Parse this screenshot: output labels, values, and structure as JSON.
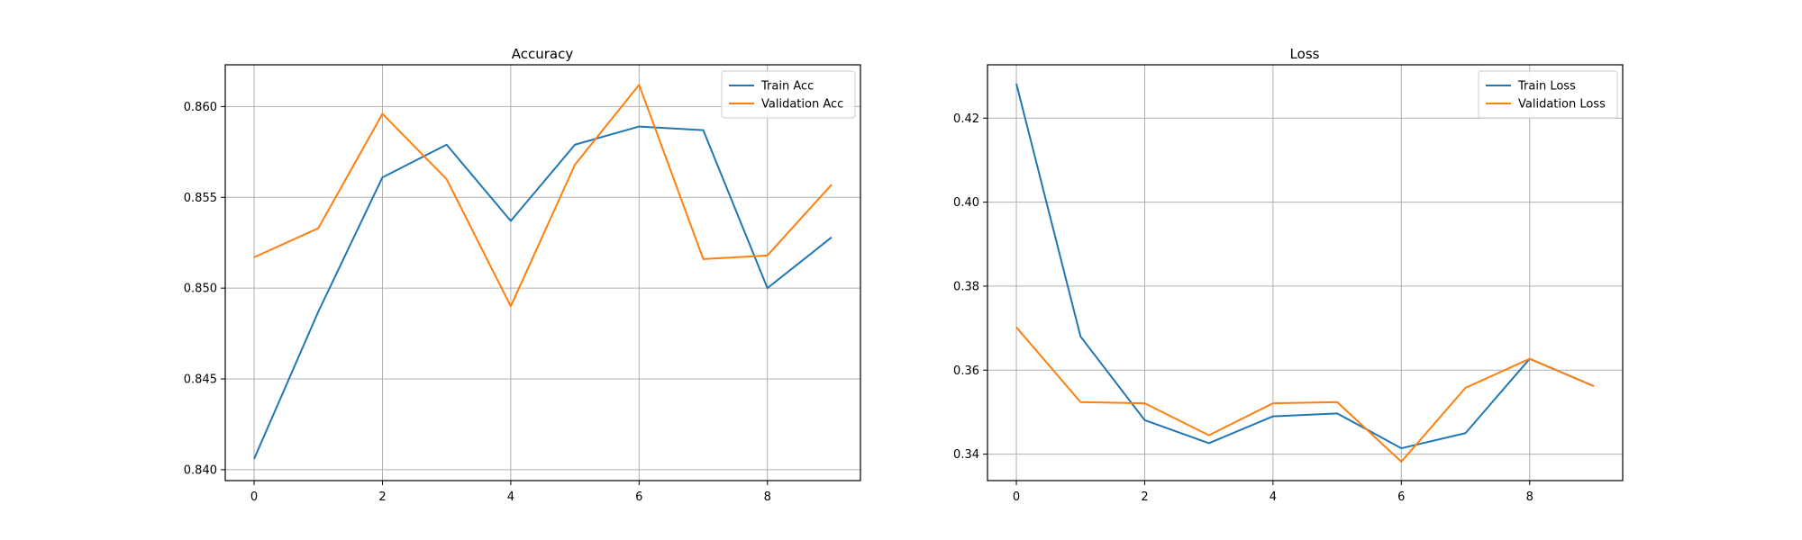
{
  "chart_data": [
    {
      "type": "line",
      "title": "Accuracy",
      "xlabel": "",
      "ylabel": "",
      "x": [
        0,
        1,
        2,
        3,
        4,
        5,
        6,
        7,
        8,
        9
      ],
      "xlim": [
        -0.45,
        9.45
      ],
      "ylim": [
        0.8394,
        0.8623
      ],
      "xticks": [
        0,
        2,
        4,
        6,
        8
      ],
      "yticks": [
        0.84,
        0.845,
        0.85,
        0.855,
        0.86
      ],
      "xtick_labels": [
        "0",
        "2",
        "4",
        "6",
        "8"
      ],
      "ytick_labels": [
        "0.840",
        "0.845",
        "0.850",
        "0.855",
        "0.860"
      ],
      "grid": true,
      "legend_position": "top-right",
      "series": [
        {
          "name": "Train Acc",
          "color": "#1f77b4",
          "values": [
            0.8406,
            0.8487,
            0.8561,
            0.8579,
            0.8537,
            0.8579,
            0.8589,
            0.8587,
            0.85,
            0.8528
          ]
        },
        {
          "name": "Validation Acc",
          "color": "#ff7f0e",
          "values": [
            0.8517,
            0.8533,
            0.8596,
            0.856,
            0.849,
            0.8568,
            0.8612,
            0.8516,
            0.8518,
            0.8557
          ]
        }
      ]
    },
    {
      "type": "line",
      "title": "Loss",
      "xlabel": "",
      "ylabel": "",
      "x": [
        0,
        1,
        2,
        3,
        4,
        5,
        6,
        7,
        8,
        9
      ],
      "xlim": [
        -0.45,
        9.45
      ],
      "ylim": [
        0.3337,
        0.4327
      ],
      "xticks": [
        0,
        2,
        4,
        6,
        8
      ],
      "yticks": [
        0.34,
        0.36,
        0.38,
        0.4,
        0.42
      ],
      "xtick_labels": [
        "0",
        "2",
        "4",
        "6",
        "8"
      ],
      "ytick_labels": [
        "0.34",
        "0.36",
        "0.38",
        "0.40",
        "0.42"
      ],
      "grid": true,
      "legend_position": "top-right",
      "series": [
        {
          "name": "Train Loss",
          "color": "#1f77b4",
          "values": [
            0.4282,
            0.368,
            0.3481,
            0.3426,
            0.349,
            0.3497,
            0.3414,
            0.345,
            0.3627,
            0.3562
          ]
        },
        {
          "name": "Validation Loss",
          "color": "#ff7f0e",
          "values": [
            0.3702,
            0.3524,
            0.3521,
            0.3445,
            0.3521,
            0.3524,
            0.3382,
            0.3558,
            0.3627,
            0.3562
          ]
        }
      ]
    }
  ]
}
